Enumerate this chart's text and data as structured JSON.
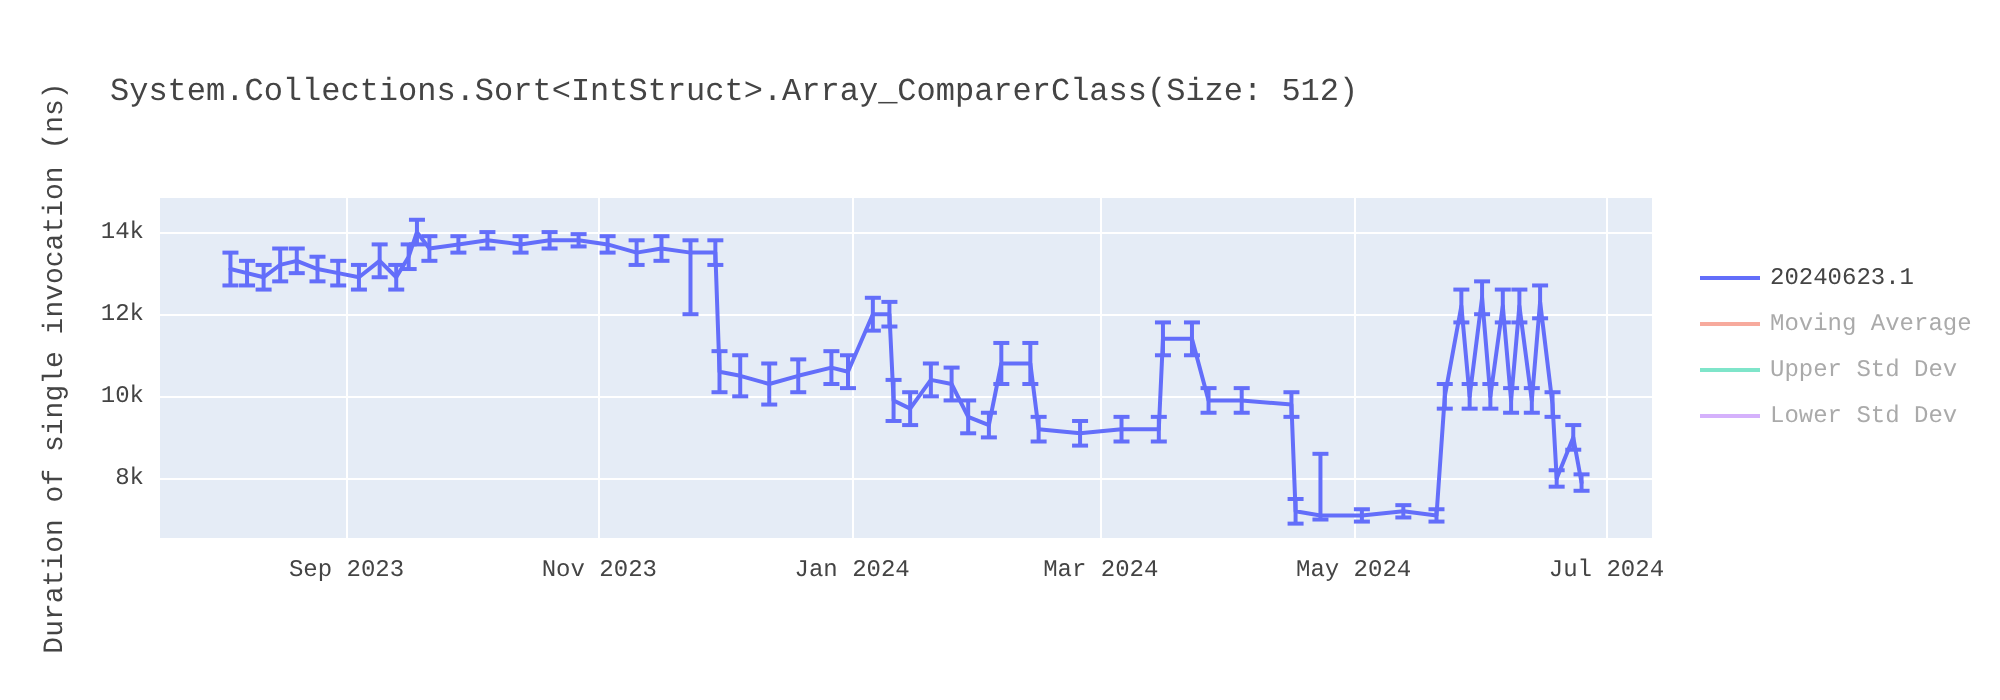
{
  "chart_data": {
    "type": "line",
    "title": "System.Collections.Sort<IntStruct>.Array_ComparerClass(Size: 512)",
    "ylabel": "Duration of single invocation (ns)",
    "xlim": [
      "2023-07-18",
      "2024-07-12"
    ],
    "xticks": [
      {
        "value": "2023-09-01",
        "label": "Sep 2023"
      },
      {
        "value": "2023-11-01",
        "label": "Nov 2023"
      },
      {
        "value": "2024-01-01",
        "label": "Jan 2024"
      },
      {
        "value": "2024-03-01",
        "label": "Mar 2024"
      },
      {
        "value": "2024-05-01",
        "label": "May 2024"
      },
      {
        "value": "2024-07-01",
        "label": "Jul 2024"
      }
    ],
    "ylim": [
      6550,
      14830
    ],
    "yticks": [
      {
        "value": 8000,
        "label": "8k"
      },
      {
        "value": 10000,
        "label": "10k"
      },
      {
        "value": 12000,
        "label": "12k"
      },
      {
        "value": 14000,
        "label": "14k"
      }
    ],
    "grid": true,
    "legend": "top right",
    "marker": "none",
    "line_style": "solid",
    "series": [
      {
        "name": "20240623.1",
        "color": "#636efa",
        "x": [
          "2023-08-04",
          "2023-08-08",
          "2023-08-12",
          "2023-08-16",
          "2023-08-20",
          "2023-08-25",
          "2023-08-30",
          "2023-09-04",
          "2023-09-09",
          "2023-09-13",
          "2023-09-16",
          "2023-09-18",
          "2023-09-21",
          "2023-09-28",
          "2023-10-05",
          "2023-10-13",
          "2023-10-20",
          "2023-10-27",
          "2023-11-03",
          "2023-11-10",
          "2023-11-16",
          "2023-11-23",
          "2023-11-29",
          "2023-11-30",
          "2023-12-05",
          "2023-12-12",
          "2023-12-19",
          "2023-12-27",
          "2023-12-31",
          "2024-01-06",
          "2024-01-10",
          "2024-01-11",
          "2024-01-15",
          "2024-01-20",
          "2024-01-25",
          "2024-01-29",
          "2024-02-03",
          "2024-02-06",
          "2024-02-13",
          "2024-02-15",
          "2024-02-25",
          "2024-03-06",
          "2024-03-15",
          "2024-03-16",
          "2024-03-23",
          "2024-03-27",
          "2024-04-04",
          "2024-04-16",
          "2024-04-17",
          "2024-04-23",
          "2024-05-03",
          "2024-05-13",
          "2024-05-21",
          "2024-05-23",
          "2024-05-27",
          "2024-05-29",
          "2024-06-01",
          "2024-06-03",
          "2024-06-06",
          "2024-06-08",
          "2024-06-10",
          "2024-06-13",
          "2024-06-15",
          "2024-06-18",
          "2024-06-19",
          "2024-06-23",
          "2024-06-25"
        ],
        "values": [
          13100,
          13000,
          12900,
          13200,
          13300,
          13100,
          13000,
          12900,
          13300,
          12900,
          13400,
          14000,
          13600,
          13700,
          13800,
          13700,
          13800,
          13800,
          13700,
          13500,
          13600,
          13500,
          13500,
          10600,
          10500,
          10300,
          10500,
          10700,
          10600,
          12000,
          12000,
          9900,
          9700,
          10400,
          10300,
          9500,
          9300,
          10800,
          10800,
          9200,
          9100,
          9200,
          9200,
          11400,
          11400,
          9900,
          9900,
          9800,
          7200,
          7100,
          7100,
          7200,
          7100,
          10000,
          12200,
          10000,
          12400,
          10000,
          12200,
          9900,
          12200,
          9900,
          12300,
          9800,
          8000,
          9000,
          7900
        ],
        "errors": [
          400,
          300,
          300,
          400,
          300,
          300,
          300,
          300,
          400,
          300,
          300,
          300,
          300,
          200,
          200,
          200,
          200,
          150,
          200,
          300,
          300,
          [
            12000,
            13800
          ],
          300,
          500,
          500,
          500,
          400,
          400,
          400,
          400,
          300,
          500,
          400,
          400,
          400,
          400,
          300,
          500,
          500,
          300,
          300,
          300,
          300,
          400,
          400,
          300,
          300,
          300,
          300,
          [
            7000,
            8600
          ],
          150,
          150,
          150,
          300,
          400,
          300,
          400,
          300,
          400,
          300,
          400,
          300,
          400,
          300,
          200,
          300,
          200
        ]
      },
      {
        "name": "Moving Average",
        "color": "#ef553b"
      },
      {
        "name": "Upper Std Dev",
        "color": "#00cc96"
      },
      {
        "name": "Lower Std Dev",
        "color": "#ab63fa"
      }
    ]
  }
}
